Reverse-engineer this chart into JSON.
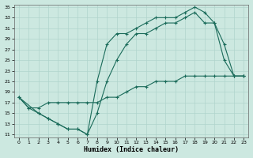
{
  "xlabel": "Humidex (Indice chaleur)",
  "bg_color": "#cce8e0",
  "line_color": "#1a6b5a",
  "grid_color": "#b0d4cc",
  "xlim": [
    -0.5,
    23.5
  ],
  "ylim": [
    10.5,
    35.5
  ],
  "yticks": [
    11,
    13,
    15,
    17,
    19,
    21,
    23,
    25,
    27,
    29,
    31,
    33,
    35
  ],
  "xticks": [
    0,
    1,
    2,
    3,
    4,
    5,
    6,
    7,
    8,
    9,
    10,
    11,
    12,
    13,
    14,
    15,
    16,
    17,
    18,
    19,
    20,
    21,
    22,
    23
  ],
  "line1_x": [
    0,
    1,
    2,
    3,
    4,
    5,
    6,
    7,
    8,
    9,
    10,
    11,
    12,
    13,
    14,
    15,
    16,
    17,
    18,
    19,
    20,
    21,
    22,
    23
  ],
  "line1_y": [
    18,
    16,
    15,
    14,
    13,
    12,
    12,
    11,
    21,
    28,
    30,
    30,
    31,
    32,
    33,
    33,
    33,
    34,
    35,
    34,
    32,
    28,
    22,
    22
  ],
  "line2_x": [
    0,
    2,
    3,
    4,
    5,
    6,
    7,
    8,
    9,
    10,
    11,
    12,
    13,
    14,
    15,
    16,
    17,
    18,
    19,
    20,
    21,
    22,
    23
  ],
  "line2_y": [
    18,
    15,
    14,
    13,
    12,
    12,
    11,
    15,
    21,
    25,
    28,
    30,
    30,
    31,
    32,
    32,
    33,
    34,
    32,
    32,
    25,
    22,
    22
  ],
  "line3_x": [
    0,
    1,
    2,
    3,
    4,
    5,
    6,
    7,
    8,
    9,
    10,
    11,
    12,
    13,
    14,
    15,
    16,
    17,
    18,
    19,
    20,
    21,
    22,
    23
  ],
  "line3_y": [
    18,
    16,
    16,
    17,
    17,
    17,
    17,
    17,
    17,
    18,
    18,
    19,
    20,
    20,
    21,
    21,
    21,
    22,
    22,
    22,
    22,
    22,
    22,
    22
  ]
}
